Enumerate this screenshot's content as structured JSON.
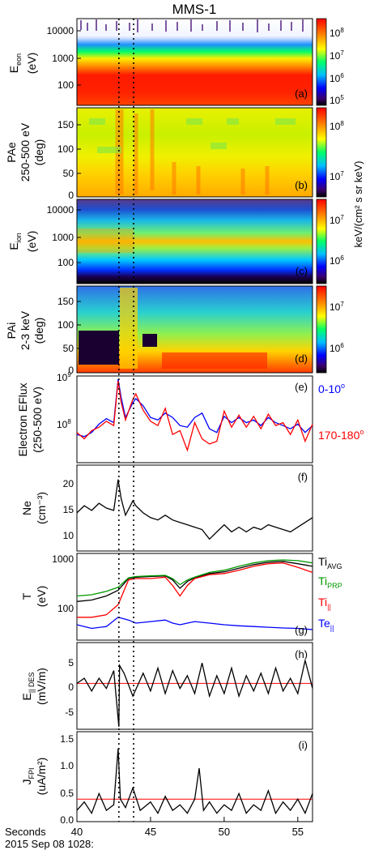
{
  "title": "MMS-1",
  "colors": {
    "e_para": "#0000ff",
    "e_anti": "#ff0000",
    "ti_avg": "#000000",
    "ti_prp": "#009900",
    "ti_par": "#ff0000",
    "te_par": "#0000ff",
    "ref_line": "#ff0000"
  },
  "time_axis": {
    "xlim": [
      40,
      56
    ],
    "ticks": [
      "40",
      "45",
      "50",
      "55"
    ],
    "label": "Seconds",
    "date_label": "2015 Sep 08 1028:",
    "event_lines": [
      42.85,
      43.85
    ]
  },
  "panels": {
    "a": {
      "tag": "(a)",
      "ylabel": "E",
      "ylabel_sub": "eon",
      "ylabel2": "(eV)",
      "yticks": [
        "10000",
        "1000",
        "100"
      ],
      "cbar_ticks": [
        {
          "base": "10",
          "exp": "8"
        },
        {
          "base": "10",
          "exp": "7"
        },
        {
          "base": "10",
          "exp": "6"
        },
        {
          "base": "10",
          "exp": "5"
        }
      ]
    },
    "b": {
      "tag": "(b)",
      "ylabel1": "PAe",
      "ylabel2": "250-500 eV",
      "ylabel3": "(deg)",
      "yticks": [
        "150",
        "100",
        "50",
        "0"
      ],
      "cbar_ticks": [
        {
          "base": "10",
          "exp": "8"
        },
        {
          "base": "10",
          "exp": "7"
        }
      ]
    },
    "c": {
      "tag": "(c)",
      "ylabel": "E",
      "ylabel_sub": "ion",
      "ylabel2": "(eV)",
      "yticks": [
        "10000",
        "1000",
        "100"
      ],
      "cbar_ticks": [
        {
          "base": "10",
          "exp": "7"
        },
        {
          "base": "10",
          "exp": "6"
        }
      ],
      "cbar_label": "keV/(cm² s sr keV)"
    },
    "d": {
      "tag": "(d)",
      "ylabel1": "PAi",
      "ylabel2": "2-3 keV",
      "ylabel3": "(deg)",
      "yticks": [
        "150",
        "100",
        "50",
        "0"
      ],
      "cbar_ticks": [
        {
          "base": "10",
          "exp": "7"
        },
        {
          "base": "10",
          "exp": "6"
        }
      ]
    }
  },
  "chart_data": [
    {
      "panel": "e",
      "type": "line",
      "tag": "(e)",
      "ylabel1": "Electron EFlux",
      "ylabel2": "(250-500 eV)",
      "yscale": "log",
      "ylim": [
        60000000,
        1000000000
      ],
      "yticks": [
        {
          "base": "10",
          "exp": "9"
        },
        {
          "base": "10",
          "exp": "8"
        }
      ],
      "legend": [
        {
          "text": "0-10",
          "sup": "o",
          "color": "#0000ff"
        },
        {
          "text": "170-180",
          "sup": "o",
          "color": "#ff0000"
        }
      ],
      "x": [
        40,
        40.5,
        41,
        41.5,
        42,
        42.5,
        42.8,
        43,
        43.3,
        43.8,
        44,
        44.5,
        45,
        45.5,
        46,
        46.5,
        47,
        47.5,
        48,
        48.5,
        49,
        49.5,
        50,
        50.5,
        51,
        51.5,
        52,
        52.5,
        53,
        53.5,
        54,
        54.5,
        55,
        55.5,
        56
      ],
      "series": [
        {
          "name": "0-10°",
          "color": "#0000ff",
          "values": [
            150000000,
            140000000,
            160000000,
            210000000,
            250000000,
            220000000,
            900000000,
            500000000,
            260000000,
            420000000,
            480000000,
            380000000,
            260000000,
            240000000,
            300000000,
            260000000,
            200000000,
            190000000,
            260000000,
            300000000,
            180000000,
            160000000,
            270000000,
            220000000,
            260000000,
            220000000,
            240000000,
            200000000,
            260000000,
            220000000,
            200000000,
            180000000,
            210000000,
            160000000,
            200000000
          ]
        },
        {
          "name": "170-180°",
          "color": "#ff0000",
          "values": [
            160000000,
            130000000,
            170000000,
            190000000,
            230000000,
            200000000,
            850000000,
            430000000,
            240000000,
            470000000,
            560000000,
            330000000,
            230000000,
            200000000,
            350000000,
            150000000,
            170000000,
            90000000,
            220000000,
            130000000,
            110000000,
            120000000,
            320000000,
            190000000,
            280000000,
            190000000,
            270000000,
            180000000,
            290000000,
            200000000,
            220000000,
            150000000,
            240000000,
            120000000,
            210000000
          ]
        }
      ]
    },
    {
      "panel": "f",
      "type": "line",
      "tag": "(f)",
      "ylabel1": "Ne",
      "ylabel2": "(cm⁻³)",
      "ylim": [
        7,
        25
      ],
      "yticks": [
        "20",
        "15",
        "10"
      ],
      "x": [
        40,
        40.5,
        41,
        41.5,
        42,
        42.5,
        42.8,
        43,
        43.3,
        43.8,
        44,
        44.5,
        45,
        45.5,
        46,
        46.5,
        47,
        47.5,
        48,
        48.5,
        49,
        49.5,
        50,
        50.5,
        51,
        51.5,
        52,
        52.5,
        53,
        53.5,
        54,
        54.5,
        55,
        55.5,
        56
      ],
      "series": [
        {
          "name": "Ne",
          "color": "#000000",
          "values": [
            15,
            16.5,
            15.5,
            17,
            16,
            15.5,
            22,
            18,
            14.5,
            17.5,
            16.5,
            15,
            14,
            13.5,
            14.5,
            13.5,
            13,
            12.5,
            12,
            11.5,
            9.5,
            11,
            12.5,
            11,
            12,
            11,
            12,
            11.5,
            12.5,
            12,
            11.5,
            11,
            12,
            13,
            14
          ]
        }
      ]
    },
    {
      "panel": "g",
      "type": "line",
      "tag": "(g)",
      "ylabel1": "T",
      "ylabel2": "(eV)",
      "yscale": "log",
      "ylim": [
        50,
        1000
      ],
      "yticks": [
        "1000",
        "100"
      ],
      "legend": [
        {
          "text": "Ti",
          "sub": "AVG",
          "color": "#000000"
        },
        {
          "text": "Ti",
          "sub": "PRP",
          "color": "#009900"
        },
        {
          "text": "Ti",
          "sub": "||",
          "color": "#ff0000"
        },
        {
          "text": "Te",
          "sub": "||",
          "color": "#0000ff"
        }
      ],
      "x": [
        40,
        41,
        42,
        42.8,
        43.5,
        44,
        45,
        46,
        46.5,
        47,
        47.5,
        48,
        49,
        50,
        51,
        52,
        53,
        54,
        55,
        56
      ],
      "series": [
        {
          "name": "Ti_AVG",
          "color": "#000000",
          "values": [
            190,
            200,
            230,
            280,
            420,
            440,
            450,
            460,
            400,
            300,
            380,
            430,
            500,
            530,
            600,
            680,
            740,
            760,
            700,
            640
          ]
        },
        {
          "name": "Ti_PRP",
          "color": "#009900",
          "values": [
            230,
            240,
            270,
            310,
            430,
            450,
            460,
            470,
            420,
            340,
            400,
            440,
            520,
            560,
            640,
            720,
            780,
            800,
            780,
            720
          ]
        },
        {
          "name": "Ti_||",
          "color": "#ff0000",
          "values": [
            110,
            110,
            120,
            170,
            400,
            420,
            420,
            440,
            330,
            230,
            330,
            420,
            480,
            500,
            560,
            640,
            700,
            720,
            620,
            520
          ]
        },
        {
          "name": "Te_||",
          "color": "#0000ff",
          "values": [
            85,
            75,
            80,
            110,
            100,
            90,
            95,
            100,
            90,
            85,
            90,
            95,
            90,
            85,
            82,
            80,
            78,
            76,
            75,
            72
          ]
        }
      ]
    },
    {
      "panel": "h",
      "type": "line",
      "tag": "(h)",
      "ylabel1": "E",
      "ylabel1_sub": "|| DES",
      "ylabel2": "(mV/m)",
      "ylim": [
        -9,
        8
      ],
      "yticks": [
        "5",
        "0",
        "-5"
      ],
      "reference_line": 0,
      "x": [
        40,
        40.5,
        41,
        41.5,
        42,
        42.5,
        42.85,
        42.9,
        43.2,
        43.8,
        44.5,
        45,
        45.5,
        46,
        46.5,
        47,
        47.5,
        48,
        48.5,
        49,
        49.5,
        50,
        50.5,
        51,
        51.5,
        52,
        52.5,
        53,
        53.5,
        54,
        54.5,
        55,
        55.5,
        56
      ],
      "series": [
        {
          "name": "E_|| DES",
          "color": "#000000",
          "values": [
            0,
            1,
            -1.5,
            1,
            -1,
            2.5,
            -8.5,
            3.5,
            2,
            -2.5,
            2,
            -1.5,
            3,
            -2,
            2.5,
            -1,
            1.5,
            -2,
            4,
            -2.5,
            1.5,
            -2,
            3,
            -2.5,
            1.5,
            -1.5,
            2,
            -2,
            3,
            -1.5,
            1,
            -2,
            4.5,
            -1
          ]
        }
      ]
    },
    {
      "panel": "i",
      "type": "line",
      "tag": "(i)",
      "ylabel1": "J",
      "ylabel1_sub": "FPI",
      "ylabel2": "(uA/m²)",
      "ylim": [
        0,
        1.6
      ],
      "yticks": [
        "1.5",
        "1.0",
        "0.5",
        "0.0"
      ],
      "reference_line": 0.4,
      "x": [
        40,
        40.5,
        41,
        41.5,
        42,
        42.5,
        42.8,
        42.95,
        43.3,
        43.8,
        44.3,
        45,
        45.5,
        46,
        46.5,
        47,
        47.5,
        48,
        48.3,
        48.6,
        49,
        49.5,
        50,
        50.5,
        51,
        51.5,
        52,
        52.5,
        53,
        53.5,
        54,
        54.5,
        55,
        55.5,
        56
      ],
      "series": [
        {
          "name": "J_FPI",
          "color": "#000000",
          "values": [
            0.2,
            0.35,
            0.15,
            0.5,
            0.2,
            0.3,
            1.3,
            0.4,
            0.25,
            0.6,
            0.2,
            0.35,
            0.15,
            0.45,
            0.2,
            0.3,
            0.15,
            0.4,
            0.95,
            0.2,
            0.35,
            0.15,
            0.3,
            0.2,
            0.5,
            0.15,
            0.3,
            0.2,
            0.55,
            0.15,
            0.35,
            0.2,
            0.4,
            0.15,
            0.5
          ]
        }
      ]
    }
  ]
}
